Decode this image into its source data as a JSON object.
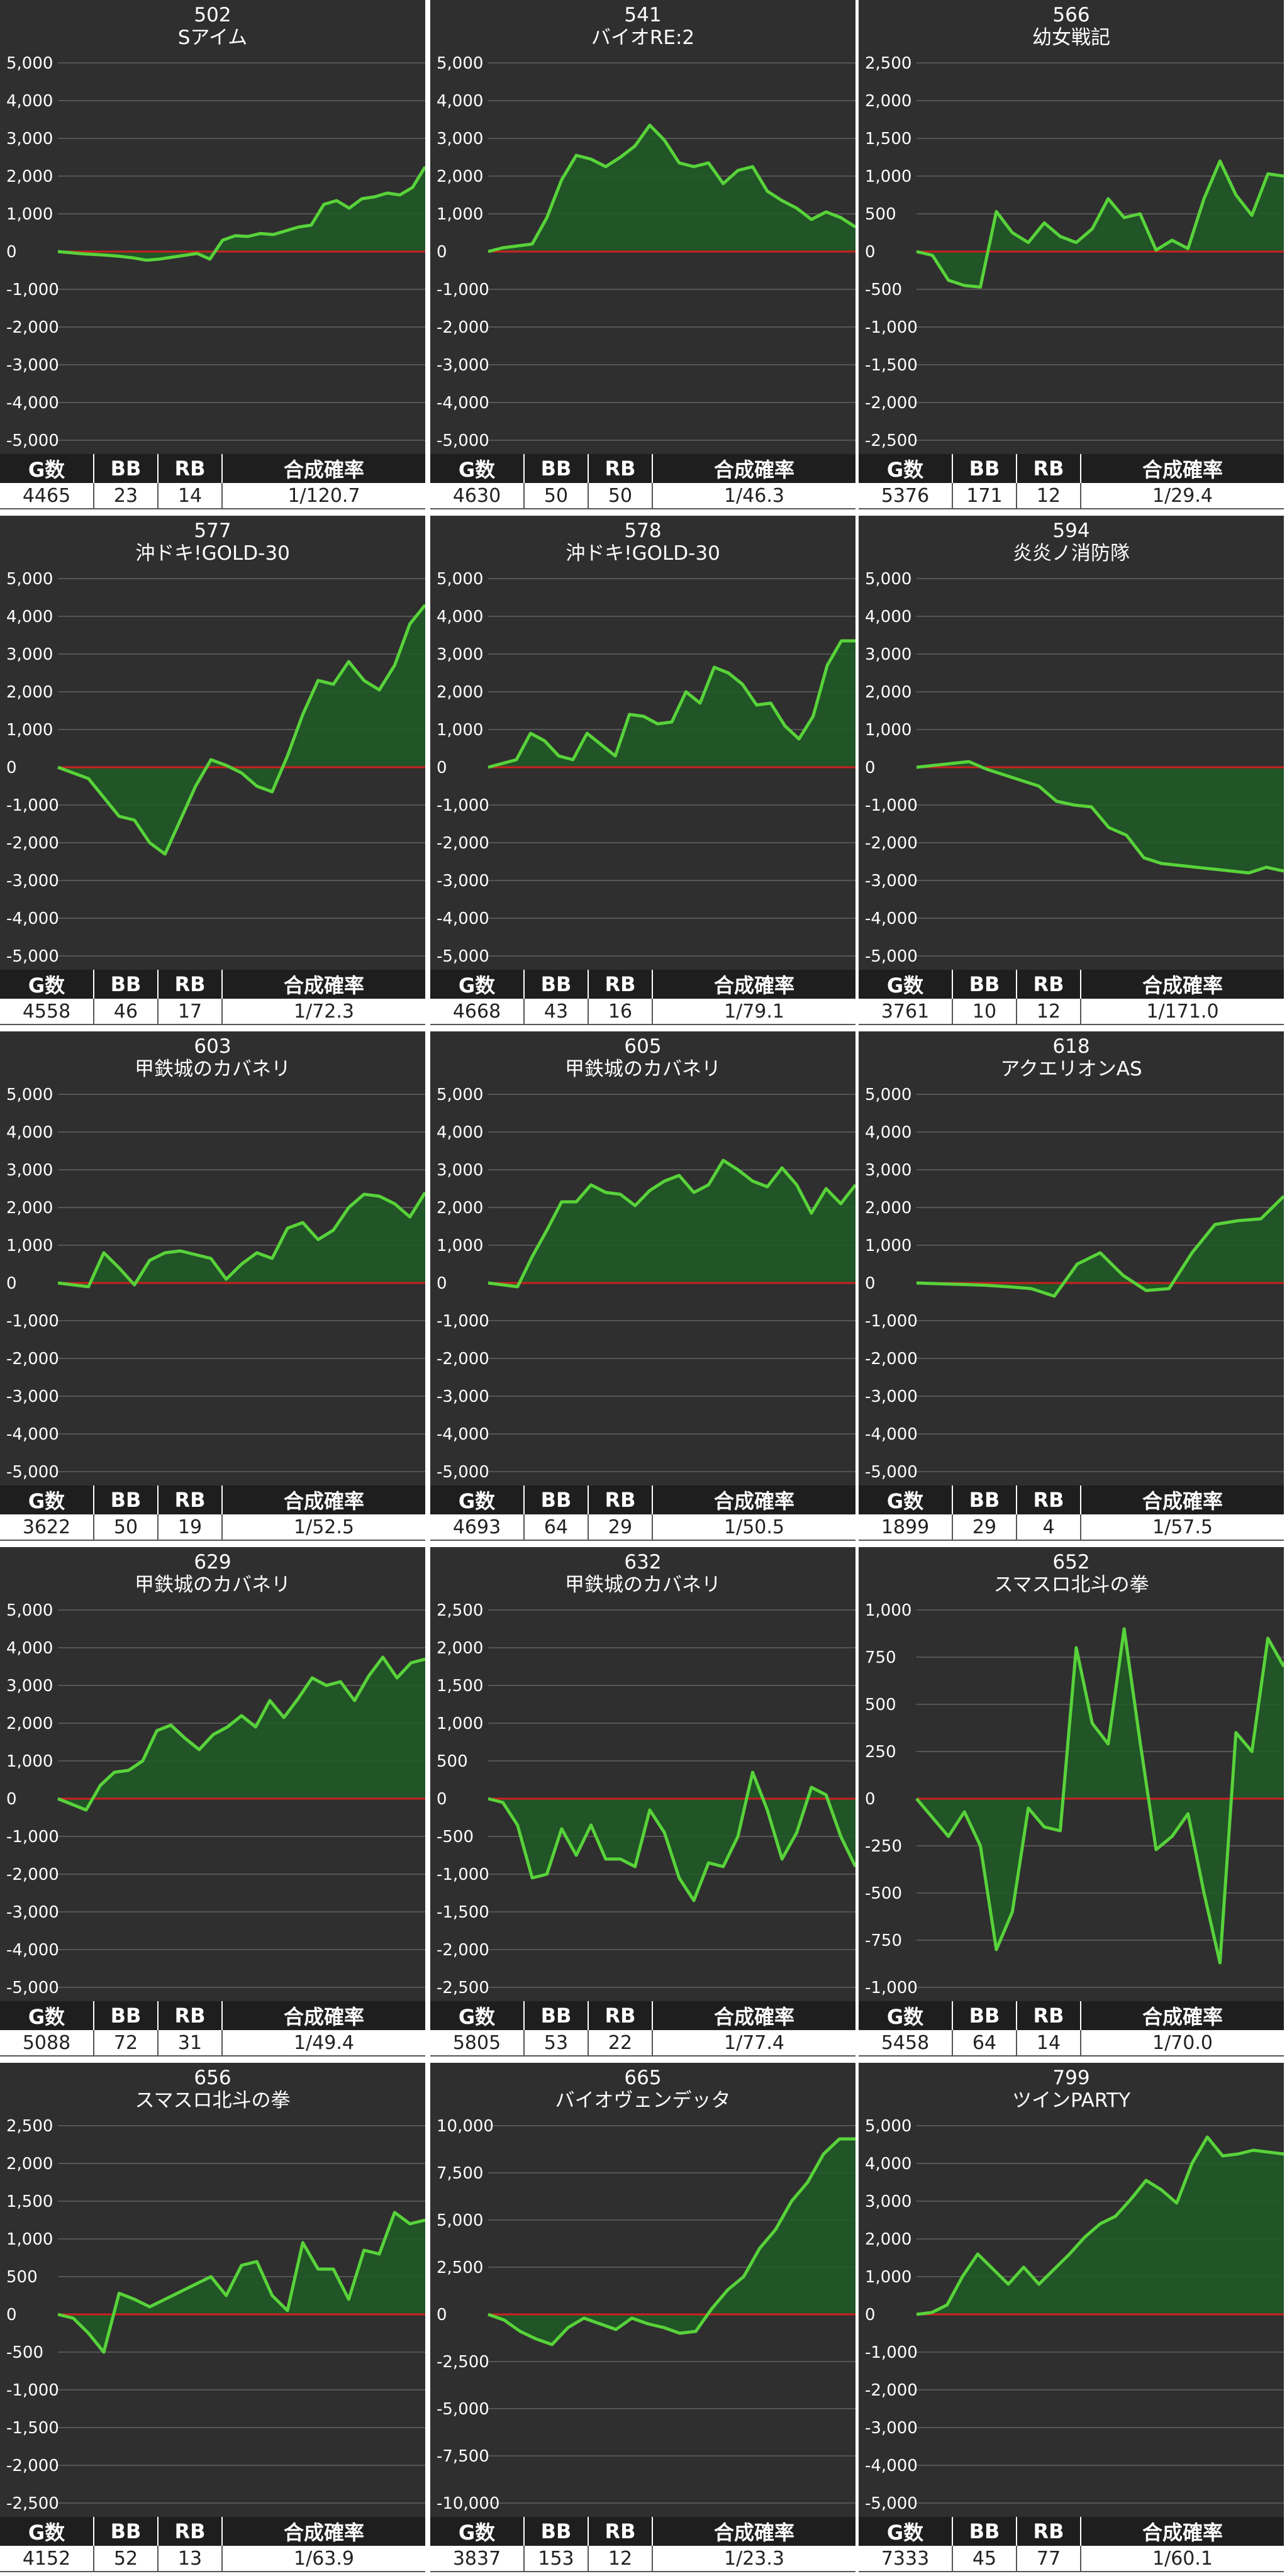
{
  "headers": {
    "g": "G数",
    "bb": "BB",
    "rb": "RB",
    "rate": "合成確率"
  },
  "colors": {
    "background": "#2f2f2f",
    "line": "#58d33a",
    "fill": "#1f5a24",
    "zero": "#cc2020",
    "grid": "#555555"
  },
  "chart_data": [
    {
      "type": "area",
      "machine": "502",
      "title": "Sアイム",
      "ylim": [
        -5000,
        5000
      ],
      "yticks": [
        5000,
        4000,
        3000,
        2000,
        1000,
        0,
        -1000,
        -2000,
        -3000,
        -4000,
        -5000
      ],
      "values": [
        0,
        -30,
        -60,
        -80,
        -100,
        -130,
        -170,
        -230,
        -200,
        -150,
        -100,
        -50,
        -200,
        300,
        420,
        400,
        480,
        450,
        550,
        650,
        700,
        1250,
        1350,
        1150,
        1400,
        1450,
        1550,
        1500,
        1700,
        2250
      ],
      "stats": {
        "g": "4465",
        "bb": "23",
        "rb": "14",
        "rate": "1/120.7"
      }
    },
    {
      "type": "area",
      "machine": "541",
      "title": "バイオRE:2",
      "ylim": [
        -5000,
        5000
      ],
      "yticks": [
        5000,
        4000,
        3000,
        2000,
        1000,
        0,
        -1000,
        -2000,
        -3000,
        -4000,
        -5000
      ],
      "values": [
        0,
        100,
        150,
        200,
        900,
        1900,
        2550,
        2450,
        2250,
        2500,
        2800,
        3350,
        2950,
        2350,
        2250,
        2350,
        1800,
        2150,
        2250,
        1600,
        1350,
        1150,
        850,
        1050,
        900,
        650
      ],
      "stats": {
        "g": "4630",
        "bb": "50",
        "rb": "50",
        "rate": "1/46.3"
      }
    },
    {
      "type": "area",
      "machine": "566",
      "title": "幼女戦記",
      "ylim": [
        -2500,
        2500
      ],
      "yticks": [
        2500,
        2000,
        1500,
        1000,
        500,
        0,
        -500,
        -1000,
        -1500,
        -2000,
        -2500
      ],
      "values": [
        0,
        -50,
        -380,
        -450,
        -470,
        530,
        250,
        120,
        380,
        200,
        120,
        300,
        700,
        450,
        500,
        20,
        150,
        40,
        700,
        1200,
        750,
        480,
        1030,
        1000
      ],
      "stats": {
        "g": "5376",
        "bb": "171",
        "rb": "12",
        "rate": "1/29.4"
      }
    },
    {
      "type": "area",
      "machine": "577",
      "title": "沖ドキ!GOLD-30",
      "ylim": [
        -5000,
        5000
      ],
      "yticks": [
        5000,
        4000,
        3000,
        2000,
        1000,
        0,
        -1000,
        -2000,
        -3000,
        -4000,
        -5000
      ],
      "values": [
        0,
        -150,
        -300,
        -800,
        -1300,
        -1400,
        -2000,
        -2300,
        -1400,
        -500,
        200,
        50,
        -150,
        -500,
        -650,
        300,
        1400,
        2300,
        2200,
        2800,
        2300,
        2050,
        2700,
        3800,
        4300
      ],
      "stats": {
        "g": "4558",
        "bb": "46",
        "rb": "17",
        "rate": "1/72.3"
      }
    },
    {
      "type": "area",
      "machine": "578",
      "title": "沖ドキ!GOLD-30",
      "ylim": [
        -5000,
        5000
      ],
      "yticks": [
        5000,
        4000,
        3000,
        2000,
        1000,
        0,
        -1000,
        -2000,
        -3000,
        -4000,
        -5000
      ],
      "values": [
        0,
        100,
        200,
        900,
        700,
        300,
        200,
        900,
        600,
        300,
        1400,
        1350,
        1150,
        1200,
        2000,
        1700,
        2650,
        2500,
        2200,
        1650,
        1700,
        1100,
        750,
        1350,
        2700,
        3350,
        3350
      ],
      "stats": {
        "g": "4668",
        "bb": "43",
        "rb": "16",
        "rate": "1/79.1"
      }
    },
    {
      "type": "area",
      "machine": "594",
      "title": "炎炎ノ消防隊",
      "ylim": [
        -5000,
        5000
      ],
      "yticks": [
        5000,
        4000,
        3000,
        2000,
        1000,
        0,
        -1000,
        -2000,
        -3000,
        -4000,
        -5000
      ],
      "values": [
        0,
        50,
        100,
        150,
        -50,
        -200,
        -350,
        -500,
        -900,
        -1000,
        -1050,
        -1600,
        -1800,
        -2400,
        -2550,
        -2600,
        -2650,
        -2700,
        -2750,
        -2800,
        -2650,
        -2750
      ],
      "stats": {
        "g": "3761",
        "bb": "10",
        "rb": "12",
        "rate": "1/171.0"
      }
    },
    {
      "type": "area",
      "machine": "603",
      "title": "甲鉄城のカバネリ",
      "ylim": [
        -5000,
        5000
      ],
      "yticks": [
        5000,
        4000,
        3000,
        2000,
        1000,
        0,
        -1000,
        -2000,
        -3000,
        -4000,
        -5000
      ],
      "values": [
        0,
        -50,
        -100,
        800,
        400,
        -50,
        600,
        800,
        850,
        750,
        650,
        100,
        500,
        800,
        650,
        1450,
        1600,
        1150,
        1400,
        2000,
        2350,
        2300,
        2100,
        1750,
        2400
      ],
      "stats": {
        "g": "3622",
        "bb": "50",
        "rb": "19",
        "rate": "1/52.5"
      }
    },
    {
      "type": "area",
      "machine": "605",
      "title": "甲鉄城のカバネリ",
      "ylim": [
        -5000,
        5000
      ],
      "yticks": [
        5000,
        4000,
        3000,
        2000,
        1000,
        0,
        -1000,
        -2000,
        -3000,
        -4000,
        -5000
      ],
      "values": [
        0,
        -50,
        -100,
        700,
        1400,
        2150,
        2150,
        2600,
        2400,
        2350,
        2050,
        2450,
        2700,
        2850,
        2400,
        2600,
        3250,
        3000,
        2700,
        2550,
        3050,
        2600,
        1850,
        2500,
        2100,
        2600
      ],
      "stats": {
        "g": "4693",
        "bb": "64",
        "rb": "29",
        "rate": "1/50.5"
      }
    },
    {
      "type": "area",
      "machine": "618",
      "title": "アクエリオンAS",
      "ylim": [
        -5000,
        5000
      ],
      "yticks": [
        5000,
        4000,
        3000,
        2000,
        1000,
        0,
        -1000,
        -2000,
        -3000,
        -4000,
        -5000
      ],
      "values": [
        0,
        -20,
        -40,
        -60,
        -100,
        -150,
        -350,
        500,
        800,
        200,
        -200,
        -150,
        800,
        1550,
        1650,
        1700,
        2300
      ],
      "stats": {
        "g": "1899",
        "bb": "29",
        "rb": "4",
        "rate": "1/57.5"
      }
    },
    {
      "type": "area",
      "machine": "629",
      "title": "甲鉄城のカバネリ",
      "ylim": [
        -5000,
        5000
      ],
      "yticks": [
        5000,
        4000,
        3000,
        2000,
        1000,
        0,
        -1000,
        -2000,
        -3000,
        -4000,
        -5000
      ],
      "values": [
        0,
        -150,
        -300,
        350,
        700,
        750,
        1000,
        1800,
        1950,
        1600,
        1300,
        1700,
        1900,
        2200,
        1900,
        2600,
        2150,
        2650,
        3200,
        3000,
        3100,
        2600,
        3250,
        3750,
        3200,
        3600,
        3700
      ],
      "stats": {
        "g": "5088",
        "bb": "72",
        "rb": "31",
        "rate": "1/49.4"
      }
    },
    {
      "type": "area",
      "machine": "632",
      "title": "甲鉄城のカバネリ",
      "ylim": [
        -2500,
        2500
      ],
      "yticks": [
        2500,
        2000,
        1500,
        1000,
        500,
        0,
        -500,
        -1000,
        -1500,
        -2000,
        -2500
      ],
      "values": [
        0,
        -50,
        -350,
        -1050,
        -1000,
        -400,
        -750,
        -350,
        -800,
        -800,
        -900,
        -150,
        -450,
        -1050,
        -1350,
        -850,
        -900,
        -500,
        350,
        -150,
        -800,
        -450,
        150,
        50,
        -500,
        -900
      ],
      "stats": {
        "g": "5805",
        "bb": "53",
        "rb": "22",
        "rate": "1/77.4"
      }
    },
    {
      "type": "area",
      "machine": "652",
      "title": "スマスロ北斗の拳",
      "ylim": [
        -1000,
        1000
      ],
      "yticks": [
        1000,
        750,
        500,
        250,
        0,
        -250,
        -500,
        -750,
        -1000
      ],
      "values": [
        0,
        -100,
        -200,
        -70,
        -250,
        -800,
        -600,
        -50,
        -150,
        -170,
        800,
        400,
        290,
        900,
        300,
        -270,
        -200,
        -80,
        -500,
        -870,
        350,
        250,
        850,
        700
      ],
      "stats": {
        "g": "5458",
        "bb": "64",
        "rb": "14",
        "rate": "1/70.0"
      }
    },
    {
      "type": "area",
      "machine": "656",
      "title": "スマスロ北斗の拳",
      "ylim": [
        -2500,
        2500
      ],
      "yticks": [
        2500,
        2000,
        1500,
        1000,
        500,
        0,
        -500,
        -1000,
        -1500,
        -2000,
        -2500
      ],
      "values": [
        0,
        -50,
        -250,
        -500,
        280,
        200,
        100,
        200,
        300,
        400,
        500,
        250,
        650,
        700,
        250,
        50,
        950,
        600,
        600,
        200,
        850,
        800,
        1350,
        1200,
        1250
      ],
      "stats": {
        "g": "4152",
        "bb": "52",
        "rb": "13",
        "rate": "1/63.9"
      }
    },
    {
      "type": "area",
      "machine": "665",
      "title": "バイオヴェンデッタ",
      "ylim": [
        -10000,
        10000
      ],
      "yticks": [
        10000,
        7500,
        5000,
        2500,
        0,
        -2500,
        -5000,
        -7500,
        -10000
      ],
      "values": [
        0,
        -300,
        -900,
        -1300,
        -1600,
        -700,
        -200,
        -500,
        -800,
        -200,
        -500,
        -700,
        -1000,
        -900,
        300,
        1300,
        2000,
        3500,
        4500,
        6000,
        7000,
        8500,
        9300,
        9300
      ],
      "stats": {
        "g": "3837",
        "bb": "153",
        "rb": "12",
        "rate": "1/23.3"
      }
    },
    {
      "type": "area",
      "machine": "799",
      "title": "ツインPARTY",
      "ylim": [
        -5000,
        5000
      ],
      "yticks": [
        5000,
        4000,
        3000,
        2000,
        1000,
        0,
        -1000,
        -2000,
        -3000,
        -4000,
        -5000
      ],
      "values": [
        0,
        50,
        250,
        1000,
        1600,
        1200,
        800,
        1250,
        800,
        1200,
        1600,
        2050,
        2400,
        2600,
        3050,
        3550,
        3300,
        2950,
        4000,
        4700,
        4200,
        4250,
        4350,
        4300,
        4250
      ],
      "stats": {
        "g": "7333",
        "bb": "45",
        "rb": "77",
        "rate": "1/60.1"
      }
    }
  ]
}
